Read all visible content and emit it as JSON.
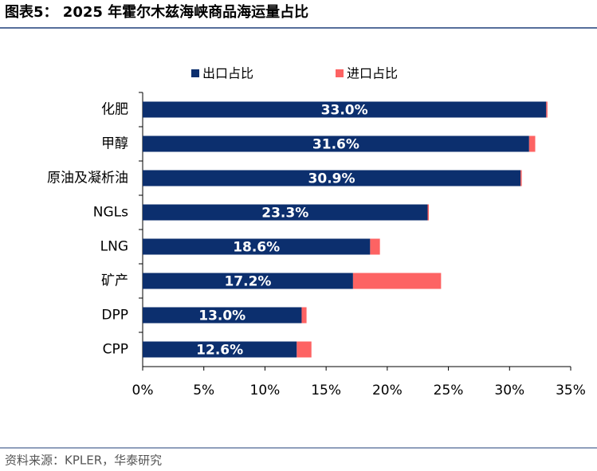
{
  "chart_data": {
    "type": "stacked_barh",
    "title": "图表5：  2025 年霍尔木兹海峡商品海运量占比",
    "source": "资料来源：KPLER，华泰研究",
    "categories": [
      "化肥",
      "甲醇",
      "原油及凝析油",
      "NGLs",
      "LNG",
      "矿产",
      "DPP",
      "CPP"
    ],
    "series": [
      {
        "name": "出口占比",
        "color": "#0c2f6e",
        "values": [
          33.0,
          31.6,
          30.9,
          23.3,
          18.6,
          17.2,
          13.0,
          12.6
        ],
        "value_labels": [
          "33.0%",
          "31.6%",
          "30.9%",
          "23.3%",
          "18.6%",
          "17.2%",
          "13.0%",
          "12.6%"
        ]
      },
      {
        "name": "进口占比",
        "color": "#fd6363",
        "values": [
          0.1,
          0.5,
          0.1,
          0.1,
          0.8,
          7.2,
          0.4,
          1.2
        ]
      }
    ],
    "xlim": [
      0,
      35
    ],
    "xticks": [
      {
        "value": 0,
        "label": "0%"
      },
      {
        "value": 5,
        "label": "5%"
      },
      {
        "value": 10,
        "label": "10%"
      },
      {
        "value": 15,
        "label": "15%"
      },
      {
        "value": 20,
        "label": "20%"
      },
      {
        "value": 25,
        "label": "25%"
      },
      {
        "value": 30,
        "label": "30%"
      },
      {
        "value": 35,
        "label": "35%"
      }
    ]
  }
}
